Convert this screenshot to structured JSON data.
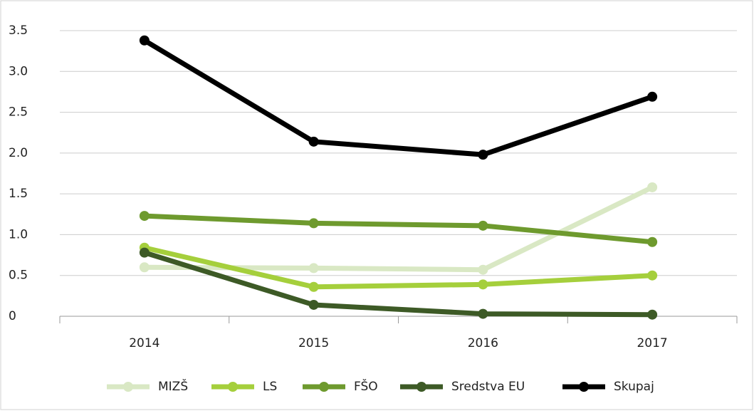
{
  "chart_data": {
    "type": "line",
    "categories": [
      "2014",
      "2015",
      "2016",
      "2017"
    ],
    "series": [
      {
        "name": "MIZŠ",
        "color": "#d9e8c4",
        "values": [
          0.6,
          0.59,
          0.57,
          1.58
        ]
      },
      {
        "name": "LS",
        "color": "#a5cf3c",
        "values": [
          0.84,
          0.36,
          0.39,
          0.5
        ]
      },
      {
        "name": "FŠO",
        "color": "#6e9a2e",
        "values": [
          1.23,
          1.14,
          1.11,
          0.91
        ]
      },
      {
        "name": "Sredstva EU",
        "color": "#3d5a26",
        "values": [
          0.78,
          0.14,
          0.03,
          0.02
        ]
      },
      {
        "name": "Skupaj",
        "color": "#000000",
        "values": [
          3.38,
          2.14,
          1.98,
          2.69
        ]
      }
    ],
    "ylim": [
      0,
      3.5
    ],
    "yticks": [
      0,
      0.5,
      {
        "value": 1,
        "label": "1.0"
      },
      1.5,
      {
        "value": 2,
        "label": "2.0"
      },
      2.5,
      {
        "value": 3,
        "label": "3.0"
      },
      3.5
    ],
    "grid": true,
    "legend": "bottom"
  }
}
